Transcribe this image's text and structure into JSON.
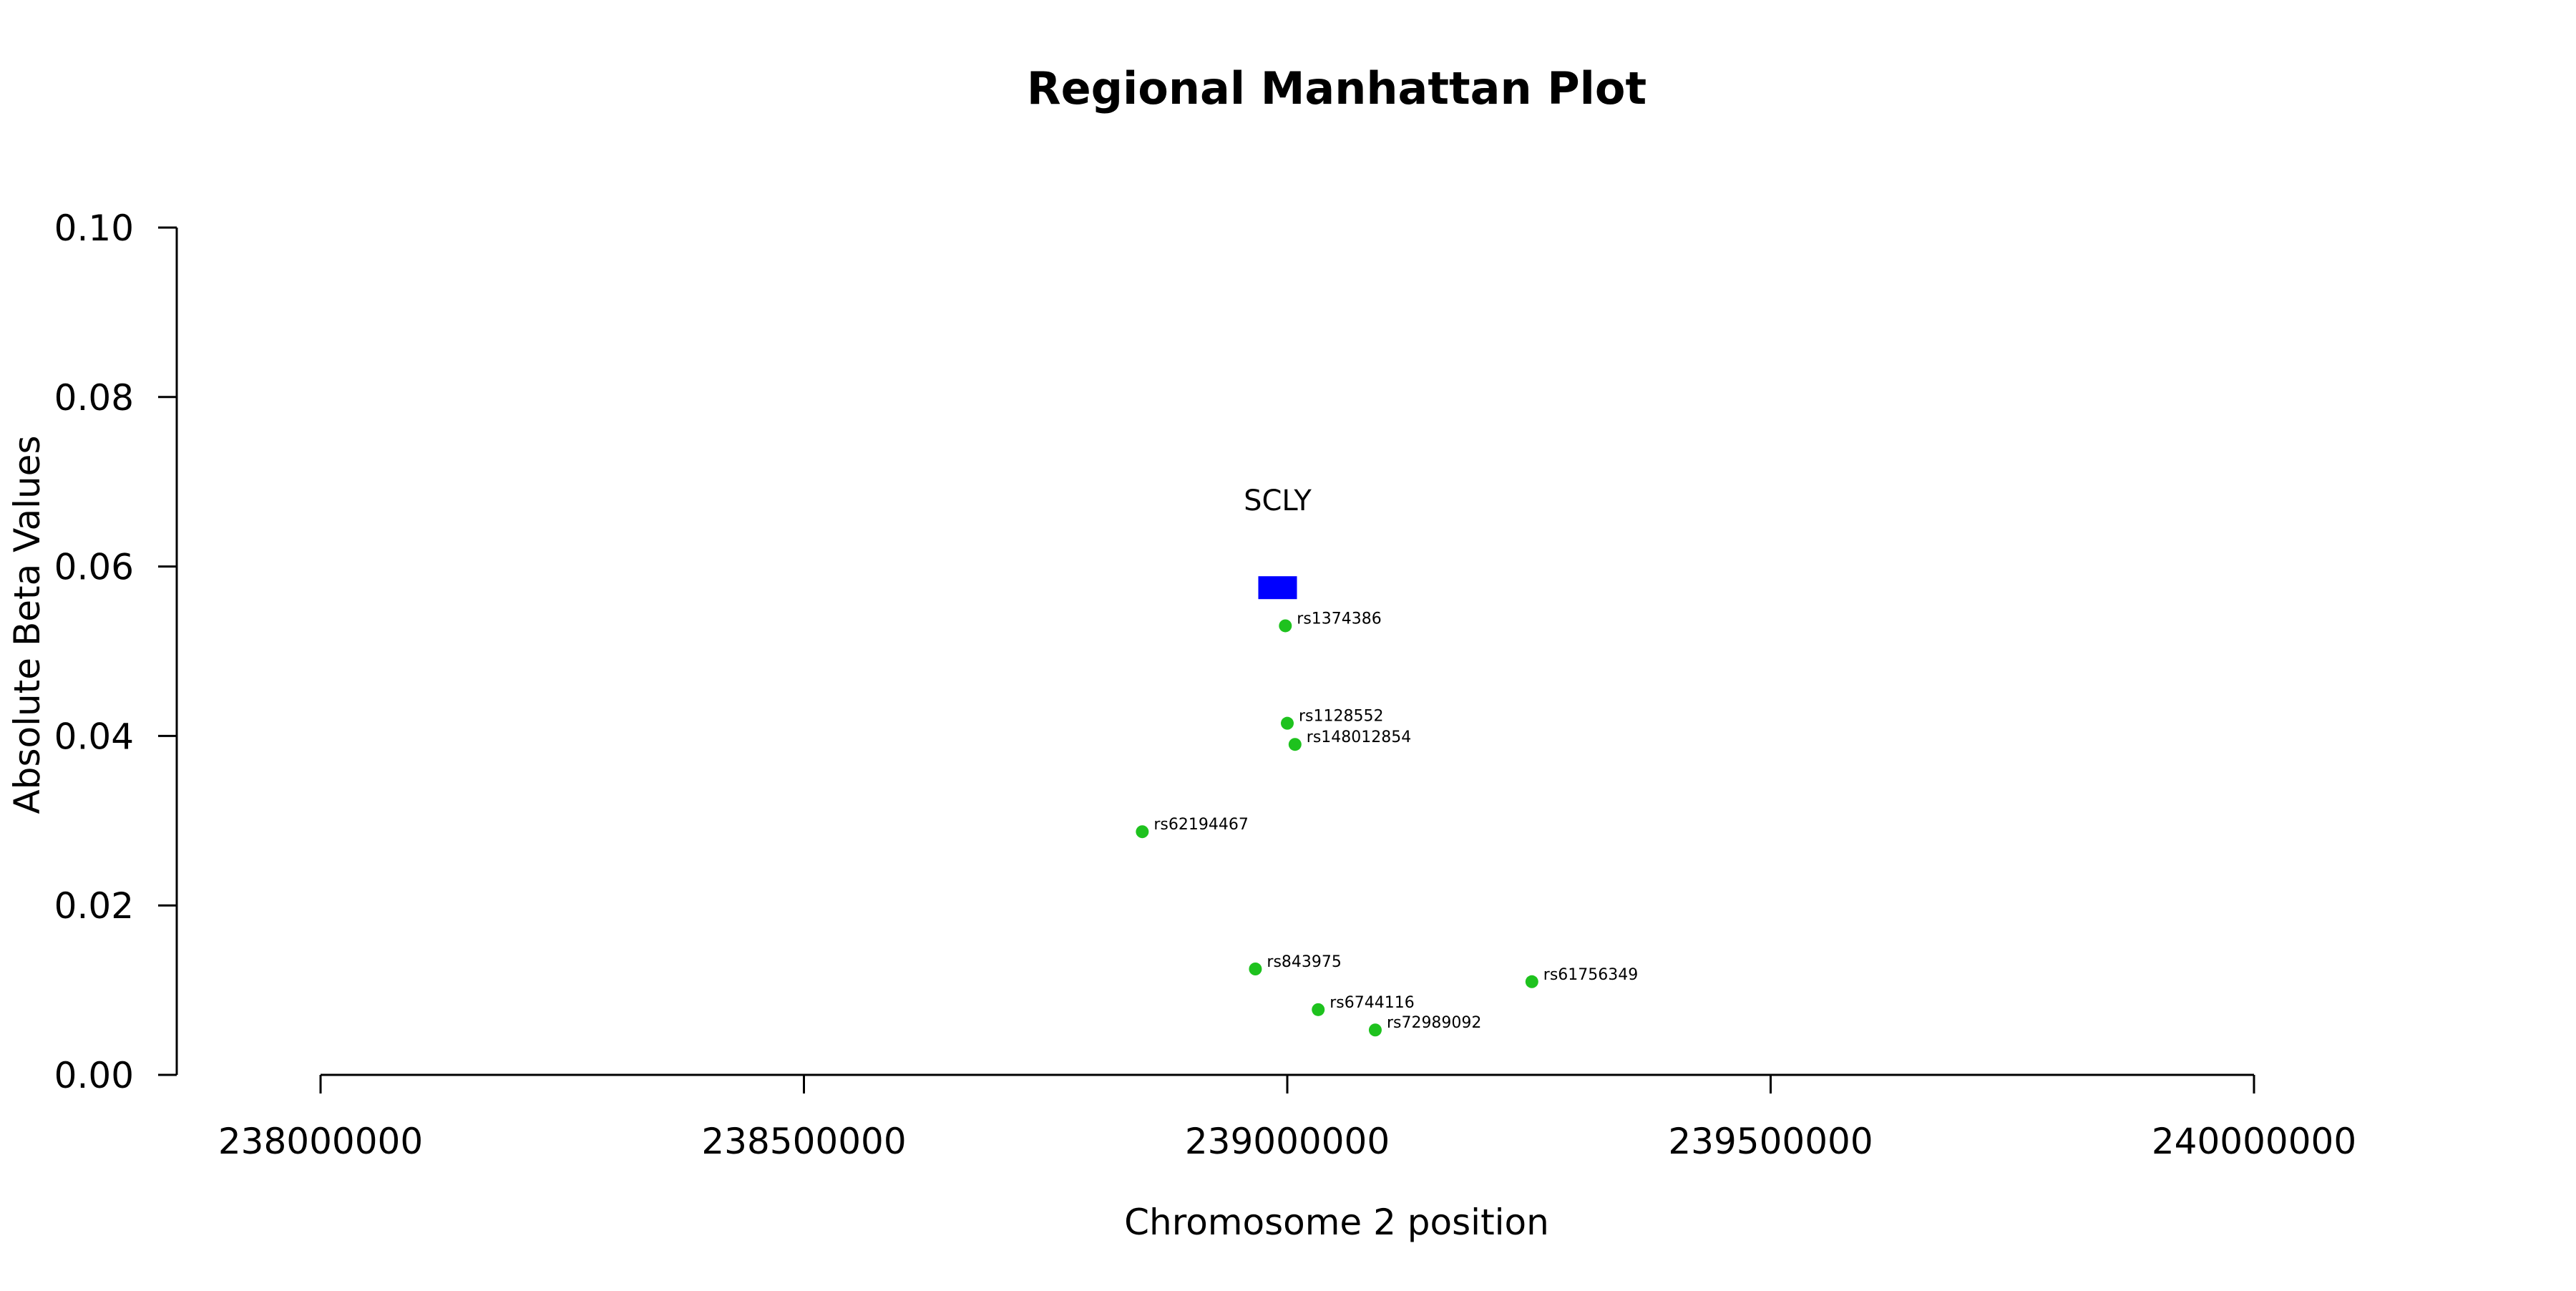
{
  "chart_data": {
    "type": "scatter",
    "title": "Regional Manhattan Plot",
    "xlabel": "Chromosome 2 position",
    "ylabel": "Absolute Beta Values",
    "xlim": [
      238000000,
      240000000
    ],
    "ylim": [
      0,
      0.1
    ],
    "x_ticks": [
      238000000,
      238500000,
      239000000,
      239500000,
      240000000
    ],
    "x_tick_labels": [
      "238000000",
      "238500000",
      "239000000",
      "239500000",
      "240000000"
    ],
    "y_ticks": [
      0,
      0.02,
      0.04,
      0.06,
      0.08,
      0.1
    ],
    "y_tick_labels": [
      "0.00",
      "0.02",
      "0.04",
      "0.06",
      "0.08",
      "0.10"
    ],
    "grid": false,
    "point_color": "#1ec21e",
    "points": [
      {
        "label": "rs1374386",
        "x": 238998000,
        "y": 0.053
      },
      {
        "label": "rs1128552",
        "x": 239000000,
        "y": 0.0415
      },
      {
        "label": "rs148012854",
        "x": 239008000,
        "y": 0.039
      },
      {
        "label": "rs62194467",
        "x": 238850000,
        "y": 0.0287
      },
      {
        "label": "rs843975",
        "x": 238967000,
        "y": 0.0125
      },
      {
        "label": "rs61756349",
        "x": 239253000,
        "y": 0.011
      },
      {
        "label": "rs6744116",
        "x": 239032000,
        "y": 0.0077
      },
      {
        "label": "rs72989092",
        "x": 239091000,
        "y": 0.0053
      }
    ],
    "genes": [
      {
        "name": "SCLY",
        "start": 238970000,
        "end": 239010000,
        "y": 0.0575,
        "color": "#0000ff"
      }
    ]
  }
}
